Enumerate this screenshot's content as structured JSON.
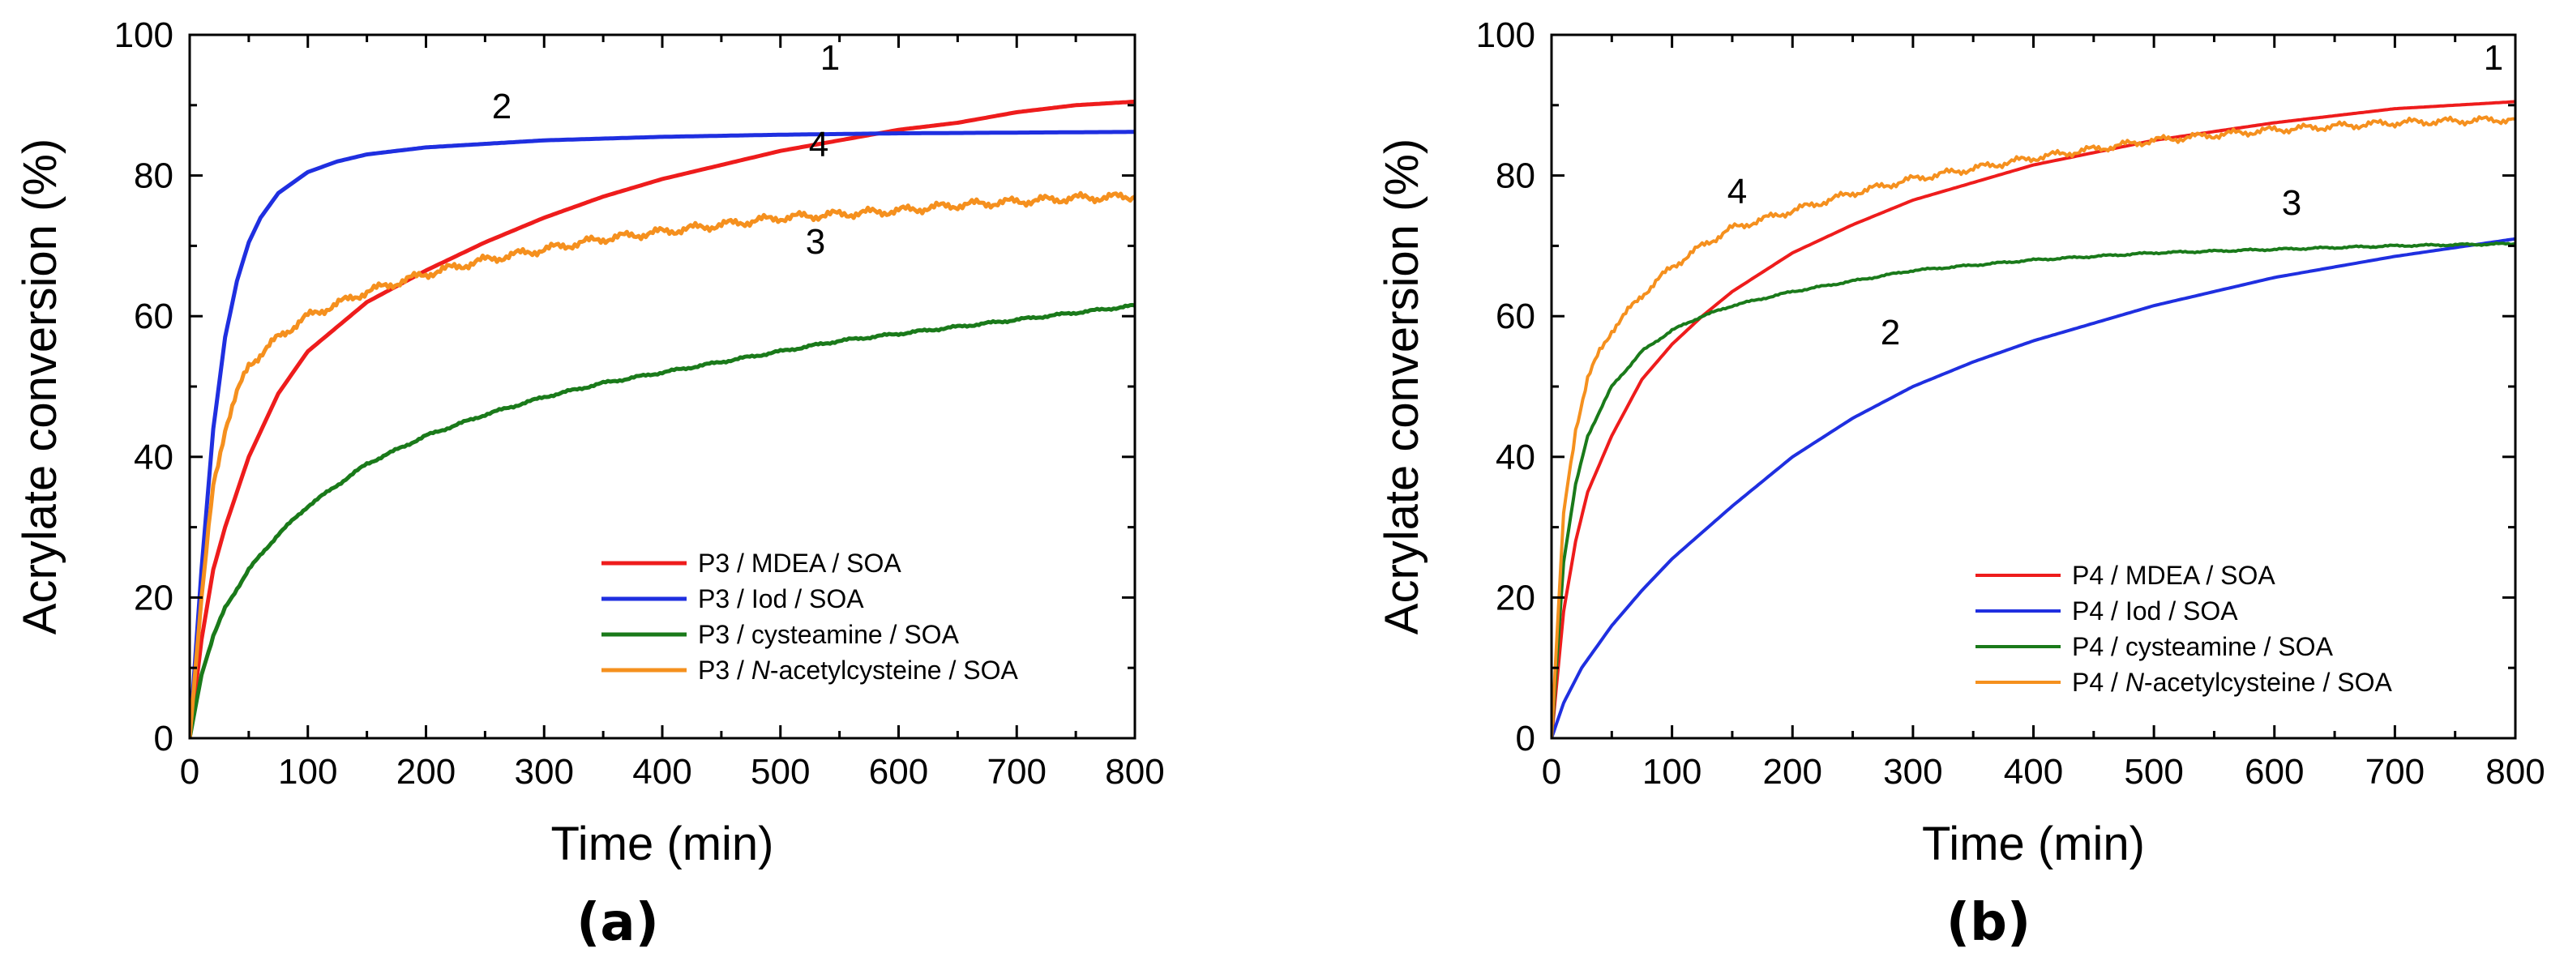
{
  "chart_data": [
    {
      "type": "line",
      "panel_label": "(a)",
      "xlabel": "Time (min)",
      "ylabel": "Acrylate conversion (%)",
      "xlim": [
        0,
        800
      ],
      "ylim": [
        0,
        100
      ],
      "xticks": [
        "0",
        "100",
        "200",
        "300",
        "400",
        "500",
        "600",
        "700",
        "800"
      ],
      "yticks": [
        "0",
        "20",
        "40",
        "60",
        "80",
        "100"
      ],
      "grid": false,
      "legend_position": "bottom-right",
      "series": [
        {
          "name_prefix": "P3 / MDEA / SOA",
          "name_italic": "",
          "name_suffix": "",
          "label": "1",
          "color": "#ee1c1c",
          "noise": 0,
          "x": [
            0,
            10,
            20,
            30,
            50,
            75,
            100,
            150,
            200,
            250,
            300,
            350,
            400,
            450,
            500,
            550,
            600,
            650,
            700,
            750,
            800
          ],
          "y": [
            0,
            14,
            24,
            30,
            40,
            49,
            55,
            62,
            66.5,
            70.5,
            74,
            77,
            79.5,
            81.5,
            83.5,
            85,
            86.5,
            87.5,
            89,
            90,
            90.5
          ]
        },
        {
          "name_prefix": "P3 / Iod / SOA",
          "name_italic": "",
          "name_suffix": "",
          "label": "2",
          "color": "#1f2fe0",
          "noise": 0,
          "x": [
            0,
            10,
            20,
            30,
            40,
            50,
            60,
            75,
            100,
            125,
            150,
            200,
            250,
            300,
            400,
            500,
            600,
            700,
            800
          ],
          "y": [
            0,
            24,
            44,
            57,
            65,
            70.5,
            74,
            77.5,
            80.5,
            82,
            83,
            84,
            84.5,
            85,
            85.5,
            85.8,
            86,
            86.1,
            86.2
          ]
        },
        {
          "name_prefix": "P3 / cysteamine / SOA",
          "name_italic": "",
          "name_suffix": "",
          "label": "3",
          "color": "#1a7a1a",
          "noise": 0.2,
          "x": [
            0,
            10,
            20,
            30,
            50,
            75,
            100,
            150,
            200,
            250,
            300,
            350,
            400,
            450,
            500,
            550,
            600,
            650,
            700,
            750,
            800
          ],
          "y": [
            0,
            9,
            14.5,
            18.5,
            24,
            29,
            33,
            39,
            43,
            46,
            48.5,
            50.5,
            52,
            53.5,
            55,
            56.5,
            57.5,
            58.5,
            59.5,
            60.5,
            61.5
          ]
        },
        {
          "name_prefix": "P3 / ",
          "name_italic": "N",
          "name_suffix": "-acetylcysteine / SOA",
          "label": "4",
          "color": "#f5901e",
          "noise": 0.7,
          "x": [
            0,
            10,
            20,
            30,
            40,
            50,
            75,
            100,
            150,
            200,
            250,
            300,
            350,
            400,
            450,
            500,
            550,
            600,
            650,
            700,
            750,
            800
          ],
          "y": [
            0,
            20,
            36,
            44,
            49,
            53,
            57,
            60,
            63.5,
            66,
            68,
            69.5,
            71,
            72,
            73,
            74,
            74.5,
            75,
            75.8,
            76.3,
            76.8,
            77
          ]
        }
      ]
    },
    {
      "type": "line",
      "panel_label": "(b)",
      "xlabel": "Time (min)",
      "ylabel": "Acrylate conversion (%)",
      "xlim": [
        0,
        800
      ],
      "ylim": [
        0,
        100
      ],
      "xticks": [
        "0",
        "100",
        "200",
        "300",
        "400",
        "500",
        "600",
        "700",
        "800"
      ],
      "yticks": [
        "0",
        "20",
        "40",
        "60",
        "80",
        "100"
      ],
      "grid": false,
      "legend_position": "bottom-right",
      "series": [
        {
          "name_prefix": "P4 / MDEA / SOA",
          "name_italic": "",
          "name_suffix": "",
          "label": "1",
          "color": "#ee1c1c",
          "noise": 0,
          "x": [
            0,
            10,
            20,
            30,
            50,
            75,
            100,
            125,
            150,
            200,
            250,
            300,
            400,
            500,
            600,
            700,
            800
          ],
          "y": [
            0,
            18,
            28,
            35,
            43,
            51,
            56,
            60,
            63.5,
            69,
            73,
            76.5,
            81.5,
            85,
            87.5,
            89.5,
            90.5
          ]
        },
        {
          "name_prefix": "P4 / Iod / SOA",
          "name_italic": "",
          "name_suffix": "",
          "label": "2",
          "color": "#1f2fe0",
          "noise": 0,
          "x": [
            0,
            10,
            25,
            50,
            75,
            100,
            150,
            200,
            250,
            300,
            350,
            400,
            450,
            500,
            600,
            700,
            800
          ],
          "y": [
            0,
            5,
            10,
            16,
            21,
            25.5,
            33,
            40,
            45.5,
            50,
            53.5,
            56.5,
            59,
            61.5,
            65.5,
            68.5,
            71
          ]
        },
        {
          "name_prefix": "P4 / cysteamine / SOA",
          "name_italic": "",
          "name_suffix": "",
          "label": "3",
          "color": "#1a7a1a",
          "noise": 0.15,
          "x": [
            0,
            10,
            20,
            30,
            50,
            75,
            100,
            125,
            150,
            200,
            250,
            300,
            400,
            500,
            600,
            700,
            800
          ],
          "y": [
            0,
            25,
            36,
            43,
            50,
            55,
            58,
            60,
            61.5,
            63.5,
            65,
            66.5,
            68,
            69,
            69.5,
            70,
            70.3
          ]
        },
        {
          "name_prefix": "P4 / ",
          "name_italic": "N",
          "name_suffix": "-acetylcysteine / SOA",
          "label": "4",
          "color": "#f5901e",
          "noise": 0.6,
          "x": [
            0,
            10,
            20,
            30,
            40,
            50,
            75,
            100,
            125,
            150,
            200,
            250,
            300,
            400,
            500,
            600,
            700,
            800
          ],
          "y": [
            0,
            32,
            44,
            51,
            55,
            58,
            63,
            67,
            70,
            72.5,
            75,
            77.5,
            79.5,
            82.5,
            85,
            86.5,
            87.5,
            88
          ]
        }
      ]
    }
  ]
}
